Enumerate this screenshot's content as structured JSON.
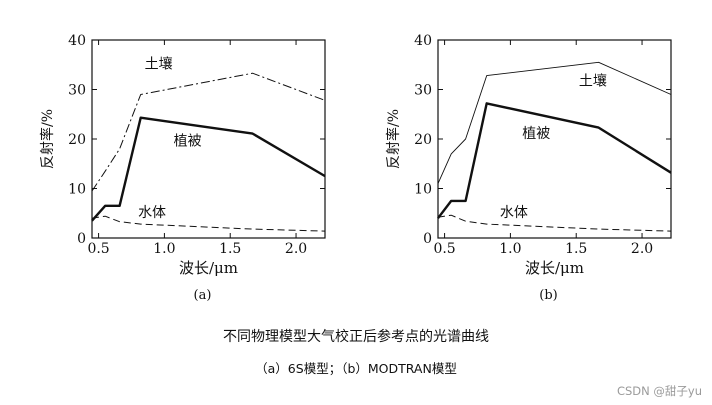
{
  "chart_data": [
    {
      "type": "line",
      "panel_label": "(a)",
      "xlabel": "波长/μm",
      "ylabel": "反射率/%",
      "xlim": [
        0.45,
        2.22
      ],
      "ylim": [
        0,
        40
      ],
      "x_ticks": [
        0.5,
        1.0,
        1.5,
        2.0
      ],
      "x_tick_labels": [
        "0.5",
        "1.0",
        "1.5",
        "2.0"
      ],
      "y_ticks": [
        0,
        10,
        20,
        30,
        40
      ],
      "y_tick_labels": [
        "0",
        "10",
        "20",
        "30",
        "40"
      ],
      "series": [
        {
          "name": "土壤",
          "style": "dashdot",
          "label_at": [
            0.85,
            34.2
          ],
          "x": [
            0.45,
            0.55,
            0.66,
            0.82,
            1.67,
            2.22
          ],
          "y": [
            9.5,
            13.5,
            18,
            29,
            33.3,
            27.8
          ]
        },
        {
          "name": "植被",
          "style": "thick",
          "label_at": [
            1.07,
            18.7
          ],
          "x": [
            0.45,
            0.55,
            0.61,
            0.66,
            0.82,
            1.67,
            2.22
          ],
          "y": [
            3.5,
            6.5,
            6.5,
            6.5,
            24.3,
            21.1,
            12.5
          ]
        },
        {
          "name": "水体",
          "style": "dashed",
          "label_at": [
            0.8,
            4.2
          ],
          "x": [
            0.45,
            0.55,
            0.66,
            0.82,
            1.67,
            2.22
          ],
          "y": [
            4.0,
            4.4,
            3.3,
            2.8,
            1.8,
            1.4
          ]
        }
      ]
    },
    {
      "type": "line",
      "panel_label": "(b)",
      "xlabel": "波长/μm",
      "ylabel": "反射率/%",
      "xlim": [
        0.45,
        2.22
      ],
      "ylim": [
        0,
        40
      ],
      "x_ticks": [
        0.5,
        1.0,
        1.5,
        2.0
      ],
      "x_tick_labels": [
        "0.5",
        "1.0",
        "1.5",
        "2.0"
      ],
      "y_ticks": [
        0,
        10,
        20,
        30,
        40
      ],
      "y_tick_labels": [
        "0",
        "10",
        "20",
        "30",
        "40"
      ],
      "series": [
        {
          "name": "土壤",
          "style": "thin",
          "label_at": [
            1.52,
            30.8
          ],
          "x": [
            0.45,
            0.55,
            0.66,
            0.82,
            1.67,
            2.22
          ],
          "y": [
            11,
            17,
            20,
            32.8,
            35.5,
            29
          ]
        },
        {
          "name": "植被",
          "style": "thick",
          "label_at": [
            1.09,
            20.2
          ],
          "x": [
            0.45,
            0.55,
            0.61,
            0.66,
            0.82,
            1.67,
            2.22
          ],
          "y": [
            4.0,
            7.5,
            7.5,
            7.5,
            27.2,
            22.3,
            13.2
          ]
        },
        {
          "name": "水体",
          "style": "dashed",
          "label_at": [
            0.92,
            4.2
          ],
          "x": [
            0.45,
            0.55,
            0.66,
            0.82,
            1.67,
            2.22
          ],
          "y": [
            4.2,
            4.6,
            3.4,
            2.8,
            1.8,
            1.4
          ]
        }
      ]
    }
  ],
  "caption": {
    "title": "不同物理模型大气校正后参考点的光谱曲线",
    "subtitle": "（a）6S模型；（b）MODTRAN模型"
  },
  "watermark": "CSDN @甜子yu"
}
